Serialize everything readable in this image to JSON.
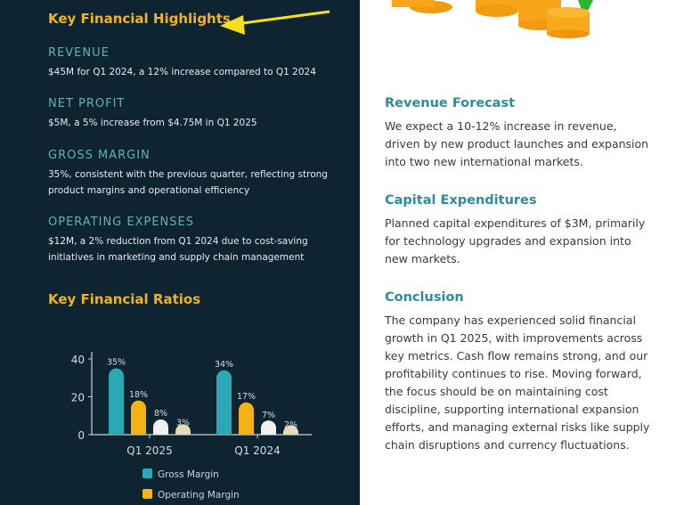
{
  "left": {
    "title": "Key Financial Highlights",
    "sections": [
      {
        "heading": "REVENUE",
        "body": "$45M for Q1 2024, a 12% increase compared to Q1 2024"
      },
      {
        "heading": "NET PROFIT",
        "body": "$5M, a 5% increase from $4.75M in Q1 2025"
      },
      {
        "heading": "GROSS MARGIN",
        "body": "35%, consistent with the previous quarter, reflecting strong product margins and operational efficiency"
      },
      {
        "heading": "OPERATING EXPENSES",
        "body": "$12M, a 2% reduction from Q1 2024 due to cost-saving initiatives in marketing and supply chain management"
      }
    ],
    "ratios_title": "Key Financial Ratios"
  },
  "right": {
    "sections": [
      {
        "heading": "Revenue Forecast",
        "body": "We expect a 10-12% increase in revenue, driven by new product launches and expansion into two new international markets."
      },
      {
        "heading": "Capital Expenditures",
        "body": "Planned capital expenditures of $3M, primarily for technology upgrades and expansion into new markets."
      },
      {
        "heading": "Conclusion",
        "body": "The company has experienced solid financial growth in Q1 2025, with improvements across key metrics. Cash flow remains strong, and our profitability continues to rise. Moving forward, the focus should be on maintaining cost discipline, supporting international expansion efforts, and managing external risks like supply chain disruptions and currency fluctuations."
      }
    ]
  },
  "annotation": {
    "arrow_color": "#f5e11a"
  },
  "chart_data": {
    "type": "bar",
    "categories": [
      "Q1 2025",
      "Q1 2024"
    ],
    "series": [
      {
        "name": "Gross Margin",
        "values": [
          35,
          34
        ],
        "labels": [
          "35%",
          "34%"
        ],
        "color": "#2aa8b6"
      },
      {
        "name": "Operating Margin",
        "values": [
          18,
          17
        ],
        "labels": [
          "18%",
          "17%"
        ],
        "color": "#f5b214"
      },
      {
        "values": [
          8,
          7
        ],
        "labels": [
          "8%",
          "7%"
        ],
        "color": "#eef0f2"
      },
      {
        "values": [
          3,
          2
        ],
        "labels": [
          "3%",
          "2%"
        ],
        "color": "#e3dcb6"
      }
    ],
    "yticks": [
      "0",
      "20",
      "40"
    ],
    "ylim": [
      0,
      40
    ],
    "legend": "bottom",
    "grid": false
  }
}
